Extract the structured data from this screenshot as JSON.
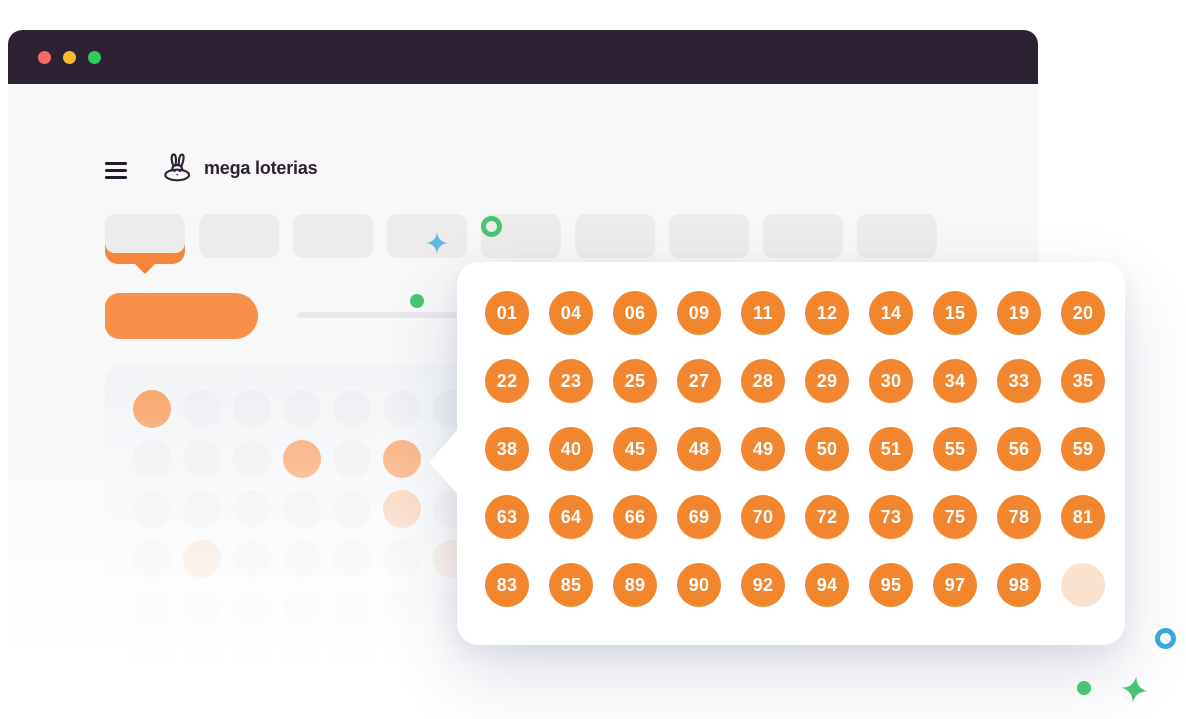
{
  "brand": {
    "name": "mega loterias"
  },
  "window": {
    "traffic_lights": [
      {
        "name": "close",
        "color": "#fa6a61"
      },
      {
        "name": "minimize",
        "color": "#f8ba2b"
      },
      {
        "name": "maximize",
        "color": "#2ecb5b"
      }
    ]
  },
  "colors": {
    "titlebar": "#2d2134",
    "accent": "#f6863a",
    "button": "#f89049",
    "ball": "#f1862f",
    "ball_empty": "#fbe2cf",
    "bg_highlight": "#f9a166",
    "green": "#46c373",
    "blue": "#63b6e6",
    "blue_ring": "#3ba5de"
  },
  "nav_tabs": {
    "count": 9,
    "active_index": 0
  },
  "picker": {
    "columns": 10,
    "numbers": [
      "01",
      "04",
      "06",
      "09",
      "11",
      "12",
      "14",
      "15",
      "19",
      "20",
      "22",
      "23",
      "25",
      "27",
      "28",
      "29",
      "30",
      "34",
      "33",
      "35",
      "38",
      "40",
      "45",
      "48",
      "49",
      "50",
      "51",
      "55",
      "56",
      "59",
      "63",
      "64",
      "66",
      "69",
      "70",
      "72",
      "73",
      "75",
      "78",
      "81",
      "83",
      "85",
      "89",
      "90",
      "92",
      "94",
      "95",
      "97",
      "98",
      ""
    ]
  },
  "background_grid": {
    "columns": 7,
    "rows": 6,
    "highlights": [
      {
        "col": 0,
        "row": 0,
        "level": "full"
      },
      {
        "col": 3,
        "row": 1,
        "level": "full"
      },
      {
        "col": 5,
        "row": 1,
        "level": "full"
      },
      {
        "col": 5,
        "row": 2,
        "level": "medium"
      },
      {
        "col": 1,
        "row": 3,
        "level": "soft"
      },
      {
        "col": 6,
        "row": 3,
        "level": "soft"
      }
    ]
  }
}
